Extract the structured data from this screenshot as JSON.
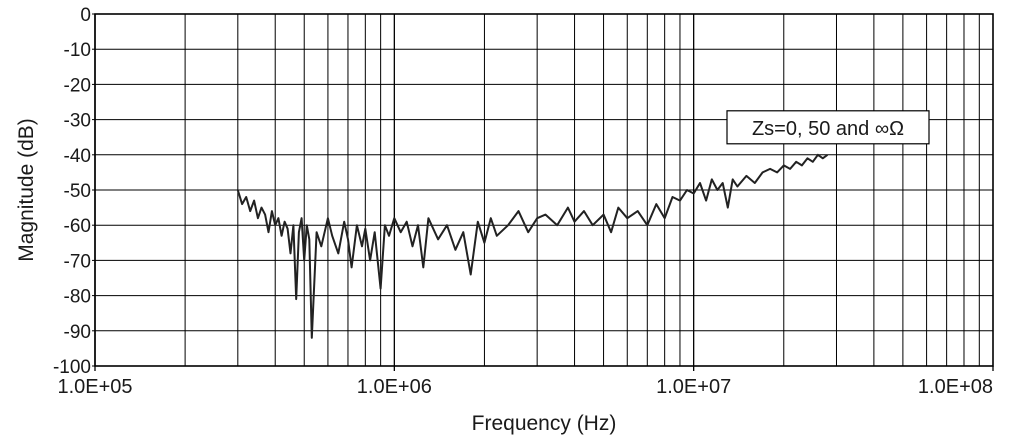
{
  "chart_data": {
    "type": "line",
    "title": "",
    "xlabel": "Frequency (Hz)",
    "ylabel": "Magnitude (dB)",
    "x_scale": "log",
    "xlim": [
      100000,
      100000000
    ],
    "ylim": [
      -100,
      0
    ],
    "x_ticks": [
      100000,
      1000000,
      10000000,
      100000000
    ],
    "x_tick_labels": [
      "1.0E+05",
      "1.0E+06",
      "1.0E+07",
      "1.0E+08"
    ],
    "y_ticks": [
      0,
      -10,
      -20,
      -30,
      -40,
      -50,
      -60,
      -70,
      -80,
      -90,
      -100
    ],
    "y_tick_labels": [
      "0",
      "-10",
      "-20",
      "-30",
      "-40",
      "-50",
      "-60",
      "-70",
      "-80",
      "-90",
      "-100"
    ],
    "grid": true,
    "annotation": "Zs=0, 50 and ∞Ω",
    "line_color": "#222222",
    "series": [
      {
        "x": [
          300000,
          310000,
          320000,
          330000,
          340000,
          350000,
          360000,
          370000,
          380000,
          390000,
          400000,
          410000,
          420000,
          430000,
          440000,
          450000,
          460000,
          470000,
          480000,
          490000,
          500000,
          510000,
          520000,
          530000,
          550000,
          570000,
          600000,
          620000,
          650000,
          680000,
          700000,
          720000,
          750000,
          780000,
          800000,
          830000,
          860000,
          900000,
          930000,
          960000,
          1000000,
          1050000,
          1100000,
          1150000,
          1200000,
          1250000,
          1300000,
          1400000,
          1500000,
          1600000,
          1700000,
          1800000,
          1900000,
          2000000,
          2100000,
          2200000,
          2400000,
          2600000,
          2800000,
          3000000,
          3200000,
          3500000,
          3800000,
          4000000,
          4300000,
          4600000,
          5000000,
          5300000,
          5600000,
          6000000,
          6500000,
          7000000,
          7500000,
          8000000,
          8500000,
          9000000,
          9500000,
          10000000,
          10500000,
          11000000,
          11500000,
          12000000,
          12500000,
          13000000,
          13500000,
          14000000,
          15000000,
          16000000,
          17000000,
          18000000,
          19000000,
          20000000,
          21000000,
          22000000,
          23000000,
          24000000,
          25000000,
          26000000,
          27000000,
          28000000
        ],
        "y": [
          -50,
          -54,
          -52,
          -56,
          -53,
          -58,
          -55,
          -57,
          -62,
          -56,
          -60,
          -58,
          -63,
          -59,
          -61,
          -68,
          -60,
          -81,
          -62,
          -58,
          -70,
          -60,
          -64,
          -92,
          -62,
          -66,
          -58,
          -63,
          -68,
          -59,
          -64,
          -72,
          -60,
          -66,
          -61,
          -70,
          -62,
          -78,
          -60,
          -63,
          -58,
          -62,
          -59,
          -66,
          -60,
          -72,
          -58,
          -64,
          -60,
          -67,
          -62,
          -74,
          -59,
          -65,
          -58,
          -63,
          -60,
          -56,
          -62,
          -58,
          -57,
          -60,
          -55,
          -59,
          -56,
          -60,
          -57,
          -62,
          -55,
          -58,
          -56,
          -60,
          -54,
          -58,
          -52,
          -53,
          -50,
          -51,
          -48,
          -53,
          -47,
          -50,
          -48,
          -55,
          -47,
          -49,
          -46,
          -48,
          -45,
          -44,
          -45,
          -43,
          -44,
          -42,
          -43,
          -41,
          -42,
          -40,
          -41,
          -40
        ]
      }
    ]
  }
}
